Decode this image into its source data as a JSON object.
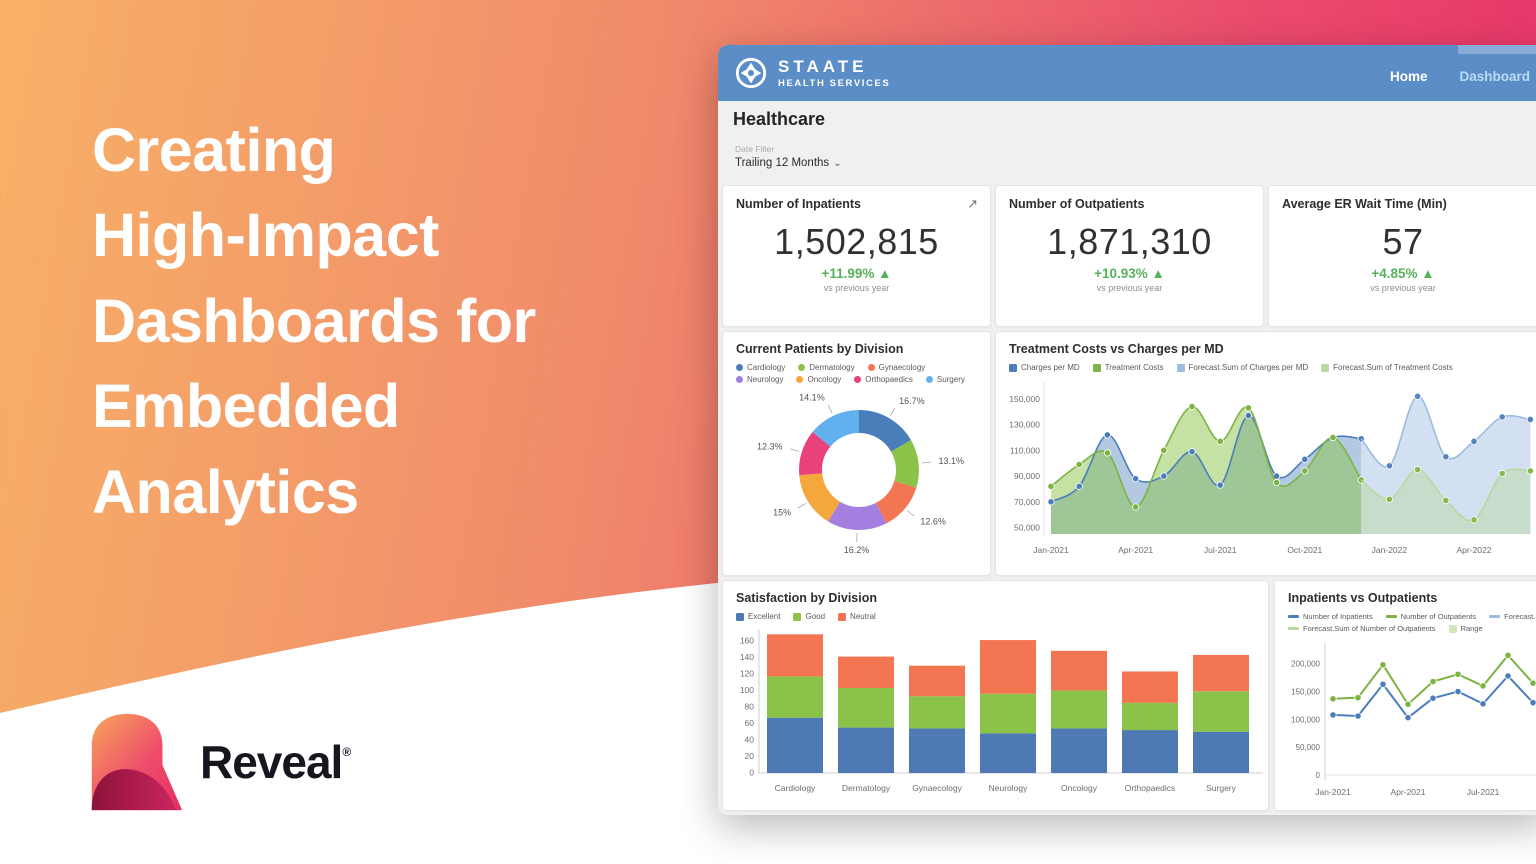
{
  "hero": {
    "title": "Creating\nHigh-Impact\nDashboards for\nEmbedded\nAnalytics",
    "brand": "Reveal",
    "registered": "®"
  },
  "app": {
    "brand": {
      "name": "STAATE",
      "subtitle": "HEALTH SERVICES"
    },
    "nav": [
      {
        "label": "Home"
      },
      {
        "label": "Dashboard"
      }
    ],
    "page_title": "Healthcare",
    "date_filter": {
      "label": "Date Filter",
      "value": "Trailing 12 Months",
      "chevron": "⌄"
    },
    "expand_icon": "↗",
    "up_arrow": "▲",
    "kpis": [
      {
        "title": "Number of Inpatients",
        "value": "1,502,815",
        "delta": "+11.99%",
        "note": "vs previous year"
      },
      {
        "title": "Number of Outpatients",
        "value": "1,871,310",
        "delta": "+10.93%",
        "note": "vs previous year"
      },
      {
        "title": "Average ER Wait Time (Min)",
        "value": "57",
        "delta": "+4.85%",
        "note": "vs previous year"
      }
    ]
  },
  "chart_data": [
    {
      "type": "pie",
      "title": "Current Patients by Division",
      "labels": [
        "Cardiology",
        "Dermatology",
        "Gynaecology",
        "Neurology",
        "Oncology",
        "Orthopaedics",
        "Surgery"
      ],
      "values": [
        16.7,
        13.1,
        12.6,
        16.2,
        15.0,
        12.3,
        14.1
      ],
      "display": [
        "16.7%",
        "13.1%",
        "12.6%",
        "16.2%",
        "15%",
        "12.3%",
        "14.1%"
      ],
      "colors": [
        "#4a7ebb",
        "#8bc34a",
        "#f47551",
        "#a47fe0",
        "#f5a73b",
        "#e8417c",
        "#63b0ee"
      ],
      "donut": true,
      "legend_position": "top"
    },
    {
      "type": "area",
      "title": "Treatment Costs vs Charges per MD",
      "x": [
        "Jan-2021",
        "Feb-2021",
        "Mar-2021",
        "Apr-2021",
        "May-2021",
        "Jun-2021",
        "Jul-2021",
        "Aug-2021",
        "Sep-2021",
        "Oct-2021",
        "Nov-2021",
        "Dec-2021",
        "Jan-2022",
        "Feb-2022",
        "Mar-2022",
        "Apr-2022",
        "May-2022",
        "Jun-2022"
      ],
      "x_tick_labels": [
        "Jan-2021",
        "Apr-2021",
        "Jul-2021",
        "Oct-2021",
        "Jan-2022",
        "Apr-2022"
      ],
      "x_tick_points": [
        0,
        3,
        6,
        9,
        12,
        15
      ],
      "y_ticks": [
        {
          "v": 150000,
          "label": "150,000"
        },
        {
          "v": 130000,
          "label": "130,000"
        },
        {
          "v": 110000,
          "label": "110,000"
        },
        {
          "v": 90000,
          "label": "90,000"
        },
        {
          "v": 70000,
          "label": "70,000"
        },
        {
          "v": 50000,
          "label": "50,000"
        }
      ],
      "ylim": [
        45000,
        160000
      ],
      "forecast_start_index": 11,
      "series": [
        {
          "name": "Charges per MD",
          "color": "#4a7ebb",
          "fill": "rgba(74,126,187,0.42)",
          "start": 0,
          "values": [
            70000,
            82000,
            122000,
            88000,
            90000,
            109000,
            83000,
            137000,
            90000,
            103000,
            120000,
            119000
          ]
        },
        {
          "name": "Treatment Costs",
          "color": "#7cb342",
          "fill": "rgba(139,195,74,0.50)",
          "start": 0,
          "values": [
            82000,
            99000,
            108000,
            66000,
            110000,
            144000,
            117000,
            143000,
            85000,
            94000,
            120000,
            87000
          ]
        },
        {
          "name": "Forecast.Sum of Charges per MD",
          "color": "#9bbbe3",
          "fill": "rgba(158,186,226,0.45)",
          "start": 11,
          "dot": "#5585c0",
          "values": [
            98000,
            152000,
            105000,
            117000,
            136000,
            134000
          ]
        },
        {
          "name": "Forecast.Sum of Treatment Costs",
          "color": "#b9d99e",
          "fill": "rgba(183,215,156,0.45)",
          "start": 11,
          "dot": "#86b950",
          "values": [
            72000,
            95000,
            71000,
            56000,
            92000,
            94000
          ]
        }
      ],
      "legend_position": "top",
      "grid": false
    },
    {
      "type": "bar",
      "title": "Satisfaction by Division",
      "categories": [
        "Cardiology",
        "Dermatology",
        "Gynaecology",
        "Neurology",
        "Oncology",
        "Orthopaedics",
        "Surgery"
      ],
      "stacked": true,
      "y_ticks": [
        0,
        20,
        40,
        60,
        80,
        100,
        120,
        140,
        160
      ],
      "ylim": [
        0,
        172
      ],
      "series": [
        {
          "name": "Excellent",
          "color": "#4e79b5",
          "values": [
            67,
            55,
            54,
            48,
            54,
            52,
            50
          ]
        },
        {
          "name": "Good",
          "color": "#8bc34a",
          "values": [
            50,
            48,
            39,
            48,
            46,
            33,
            49
          ]
        },
        {
          "name": "Neutral",
          "color": "#f47551",
          "values": [
            51,
            38,
            37,
            65,
            48,
            38,
            44
          ]
        }
      ],
      "legend_position": "top"
    },
    {
      "type": "line",
      "title": "Inpatients vs Outpatients",
      "x": [
        "Jan-2021",
        "Feb-2021",
        "Mar-2021",
        "Apr-2021",
        "May-2021",
        "Jun-2021",
        "Jul-2021",
        "Aug-2021",
        "Sep-2021"
      ],
      "x_tick_labels": [
        "Jan-2021",
        "Apr-2021",
        "Jul-2021"
      ],
      "x_tick_points": [
        0,
        3,
        6
      ],
      "y_ticks": [
        {
          "v": 200000,
          "label": "200,000"
        },
        {
          "v": 150000,
          "label": "150,000"
        },
        {
          "v": 100000,
          "label": "100,000"
        },
        {
          "v": 50000,
          "label": "50,000"
        },
        {
          "v": 0,
          "label": "0"
        }
      ],
      "ylim": [
        0,
        230000
      ],
      "series": [
        {
          "name": "Number of Inpatients",
          "color": "#4a7ebb",
          "values": [
            108000,
            106000,
            163000,
            103000,
            138000,
            150000,
            128000,
            178000,
            130000
          ]
        },
        {
          "name": "Number of Outpatients",
          "color": "#7cb342",
          "values": [
            137000,
            139000,
            198000,
            127000,
            168000,
            181000,
            160000,
            215000,
            165000
          ]
        },
        {
          "name": "Forecast.Sum of Number of Inpatients",
          "color": "#9bbbe3",
          "values": []
        },
        {
          "name": "Forecast.Sum of Number of Outpatients",
          "color": "#b9d99e",
          "values": []
        },
        {
          "name": "Range",
          "color": "#cfe7bb",
          "values": []
        }
      ],
      "legend_position": "top",
      "grid": false
    }
  ]
}
